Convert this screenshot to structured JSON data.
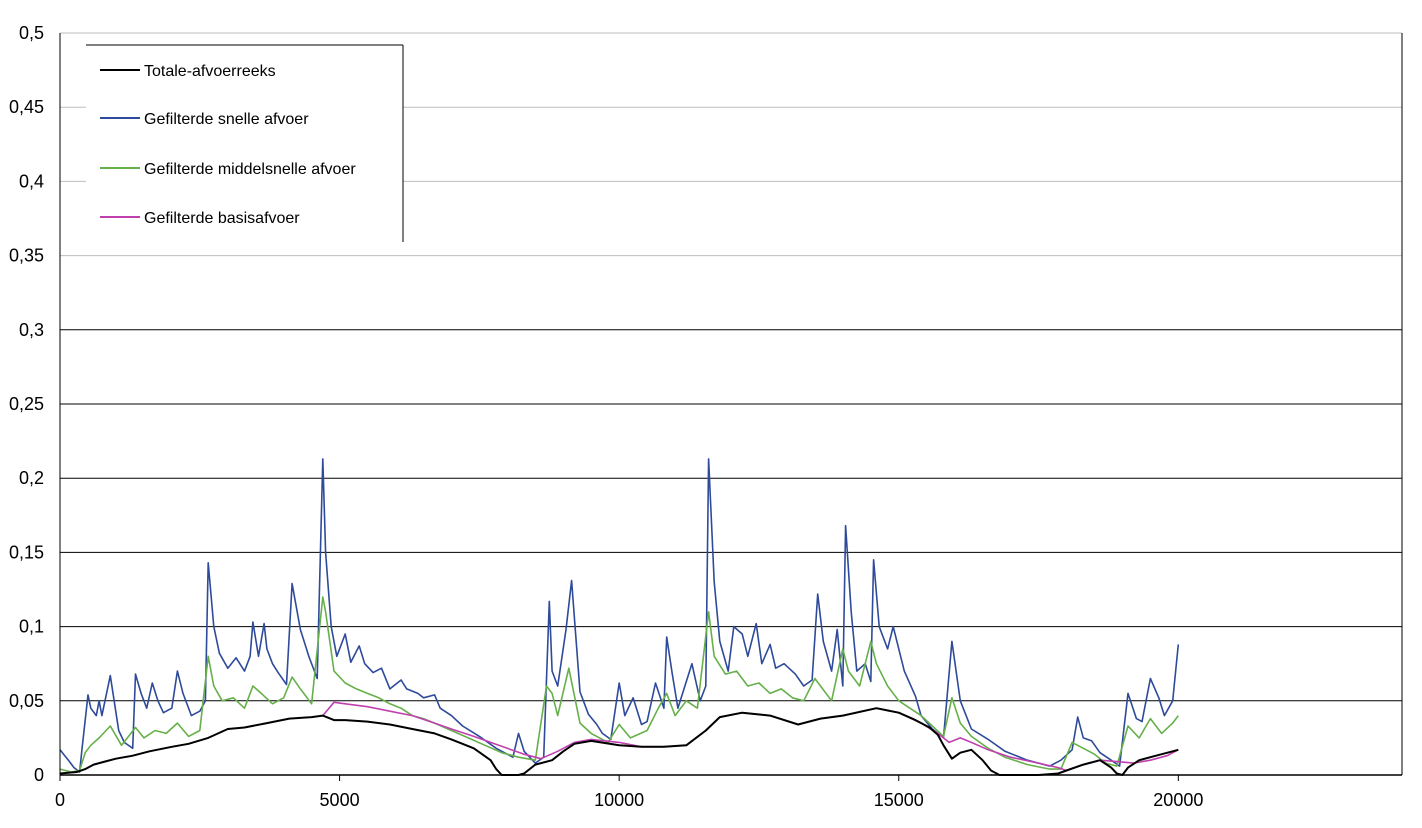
{
  "chart_data": {
    "type": "line",
    "title": "",
    "xlabel": "",
    "ylabel": "",
    "xlim": [
      0,
      24000
    ],
    "ylim": [
      0,
      0.5
    ],
    "x_ticks": [
      0,
      5000,
      10000,
      15000,
      20000
    ],
    "x_tick_labels": [
      "0",
      "5000",
      "10000",
      "15000",
      "20000"
    ],
    "y_ticks": [
      0,
      0.05,
      0.1,
      0.15,
      0.2,
      0.25,
      0.3,
      0.35,
      0.4,
      0.45,
      0.5
    ],
    "y_tick_labels": [
      "0",
      "0,05",
      "0,1",
      "0,15",
      "0,2",
      "0,25",
      "0,3",
      "0,35",
      "0,4",
      "0,45",
      "0,5"
    ],
    "grid": true,
    "legend_position": "top-left",
    "legend": [
      "Totale-afvoerreeks",
      "Gefilterde snelle afvoer",
      "Gefilterde middelsnelle afvoer",
      "Gefilterde basisafvoer"
    ],
    "colors": {
      "total": "#000000",
      "fast": "#2e4a9a",
      "medium": "#66b04a",
      "base": "#c040b0",
      "grid_major": "#000000",
      "grid_minor": "#bdbdbd"
    },
    "series": [
      {
        "name": "Totale-afvoerreeks",
        "x": [
          0,
          300,
          450,
          600,
          800,
          1000,
          1300,
          1600,
          2000,
          2300,
          2650,
          3000,
          3300,
          3700,
          4100,
          4500,
          4700,
          4900,
          5100,
          5500,
          5900,
          6300,
          6700,
          7000,
          7400,
          7700,
          7800,
          7900,
          8100,
          8200,
          8300,
          8500,
          8800,
          9000,
          9200,
          9500,
          10000,
          10400,
          10800,
          11200,
          11550,
          11800,
          12200,
          12700,
          13200,
          13600,
          14000,
          14600,
          15000,
          15300,
          15550,
          15700,
          15800,
          15950,
          16100,
          16300,
          16500,
          16650,
          16800,
          17000,
          17500,
          17850,
          18000,
          18300,
          18600,
          18800,
          18900,
          19000,
          19100,
          19300,
          19600,
          19900,
          20000
        ],
        "y": [
          0.001,
          0.002,
          0.004,
          0.007,
          0.009,
          0.011,
          0.013,
          0.016,
          0.019,
          0.021,
          0.025,
          0.031,
          0.032,
          0.035,
          0.038,
          0.039,
          0.04,
          0.037,
          0.037,
          0.036,
          0.034,
          0.031,
          0.028,
          0.024,
          0.018,
          0.01,
          0.004,
          0.0,
          0.0,
          0.0,
          0.001,
          0.007,
          0.01,
          0.016,
          0.021,
          0.023,
          0.02,
          0.019,
          0.019,
          0.02,
          0.03,
          0.039,
          0.042,
          0.04,
          0.034,
          0.038,
          0.04,
          0.045,
          0.042,
          0.037,
          0.032,
          0.027,
          0.02,
          0.011,
          0.015,
          0.017,
          0.01,
          0.003,
          0.0,
          0.0,
          0.0,
          0.001,
          0.003,
          0.007,
          0.01,
          0.005,
          0.001,
          0.0,
          0.005,
          0.01,
          0.013,
          0.016,
          0.017
        ]
      },
      {
        "name": "Gefilterde snelle afvoer",
        "x": [
          0,
          150,
          250,
          350,
          400,
          500,
          550,
          650,
          700,
          750,
          900,
          1050,
          1150,
          1300,
          1350,
          1450,
          1550,
          1650,
          1750,
          1850,
          2000,
          2100,
          2200,
          2350,
          2500,
          2600,
          2650,
          2750,
          2850,
          3000,
          3150,
          3300,
          3400,
          3450,
          3550,
          3650,
          3700,
          3800,
          3900,
          4050,
          4150,
          4300,
          4450,
          4600,
          4700,
          4750,
          4850,
          4950,
          5100,
          5200,
          5350,
          5450,
          5600,
          5750,
          5900,
          6100,
          6200,
          6400,
          6500,
          6700,
          6800,
          7000,
          7200,
          7500,
          7800,
          8100,
          8200,
          8300,
          8500,
          8650,
          8750,
          8800,
          8900,
          9050,
          9150,
          9300,
          9450,
          9600,
          9700,
          9850,
          10000,
          10100,
          10250,
          10400,
          10500,
          10650,
          10800,
          10850,
          10950,
          11050,
          11300,
          11450,
          11550,
          11600,
          11700,
          11800,
          11950,
          12050,
          12200,
          12300,
          12450,
          12550,
          12700,
          12800,
          12950,
          13150,
          13300,
          13450,
          13550,
          13650,
          13800,
          13900,
          14000,
          14050,
          14150,
          14250,
          14400,
          14500,
          14550,
          14650,
          14800,
          14900,
          15100,
          15300,
          15400,
          15600,
          15800,
          15950,
          16100,
          16300,
          16600,
          16900,
          17300,
          17700,
          17900,
          18100,
          18200,
          18300,
          18450,
          18600,
          18800,
          18950,
          19100,
          19250,
          19350,
          19500,
          19650,
          19750,
          19900,
          20000
        ],
        "y": [
          0.017,
          0.01,
          0.005,
          0.002,
          0.02,
          0.054,
          0.045,
          0.04,
          0.05,
          0.04,
          0.067,
          0.03,
          0.022,
          0.018,
          0.068,
          0.055,
          0.045,
          0.062,
          0.05,
          0.042,
          0.045,
          0.07,
          0.055,
          0.04,
          0.043,
          0.05,
          0.143,
          0.1,
          0.082,
          0.072,
          0.079,
          0.07,
          0.08,
          0.103,
          0.08,
          0.102,
          0.085,
          0.075,
          0.069,
          0.061,
          0.129,
          0.098,
          0.08,
          0.065,
          0.213,
          0.15,
          0.1,
          0.08,
          0.095,
          0.076,
          0.087,
          0.075,
          0.069,
          0.072,
          0.058,
          0.064,
          0.058,
          0.055,
          0.052,
          0.054,
          0.045,
          0.04,
          0.033,
          0.026,
          0.018,
          0.012,
          0.028,
          0.016,
          0.008,
          0.012,
          0.117,
          0.07,
          0.06,
          0.098,
          0.131,
          0.056,
          0.041,
          0.034,
          0.028,
          0.024,
          0.062,
          0.04,
          0.052,
          0.034,
          0.036,
          0.062,
          0.045,
          0.093,
          0.068,
          0.045,
          0.075,
          0.05,
          0.06,
          0.213,
          0.13,
          0.09,
          0.07,
          0.1,
          0.095,
          0.08,
          0.102,
          0.075,
          0.088,
          0.072,
          0.075,
          0.068,
          0.06,
          0.064,
          0.122,
          0.09,
          0.07,
          0.098,
          0.06,
          0.168,
          0.11,
          0.07,
          0.075,
          0.063,
          0.145,
          0.1,
          0.085,
          0.1,
          0.07,
          0.053,
          0.04,
          0.031,
          0.025,
          0.09,
          0.05,
          0.031,
          0.024,
          0.016,
          0.01,
          0.006,
          0.01,
          0.017,
          0.039,
          0.025,
          0.023,
          0.015,
          0.01,
          0.006,
          0.055,
          0.038,
          0.036,
          0.065,
          0.052,
          0.04,
          0.05,
          0.088
        ]
      },
      {
        "name": "Gefilterde middelsnelle afvoer",
        "x": [
          0,
          200,
          350,
          450,
          550,
          700,
          900,
          1100,
          1350,
          1500,
          1700,
          1900,
          2100,
          2300,
          2500,
          2650,
          2750,
          2900,
          3100,
          3300,
          3450,
          3600,
          3800,
          4000,
          4150,
          4300,
          4500,
          4700,
          4750,
          4900,
          5100,
          5300,
          5500,
          5700,
          5900,
          6100,
          6300,
          6500,
          6700,
          7000,
          7300,
          7600,
          7900,
          8200,
          8500,
          8700,
          8800,
          8900,
          9100,
          9300,
          9500,
          9800,
          10000,
          10200,
          10500,
          10700,
          10850,
          11000,
          11200,
          11400,
          11600,
          11700,
          11900,
          12100,
          12300,
          12500,
          12700,
          12900,
          13100,
          13300,
          13500,
          13600,
          13800,
          14000,
          14100,
          14300,
          14500,
          14600,
          14800,
          15000,
          15200,
          15400,
          15600,
          15800,
          15950,
          16100,
          16300,
          16600,
          16900,
          17300,
          17700,
          17900,
          18100,
          18300,
          18500,
          18700,
          18900,
          19100,
          19300,
          19500,
          19700,
          19900,
          20000
        ],
        "y": [
          0.004,
          0.002,
          0.003,
          0.015,
          0.02,
          0.025,
          0.033,
          0.02,
          0.032,
          0.025,
          0.03,
          0.028,
          0.035,
          0.026,
          0.03,
          0.08,
          0.06,
          0.05,
          0.052,
          0.045,
          0.06,
          0.055,
          0.048,
          0.052,
          0.066,
          0.058,
          0.048,
          0.12,
          0.11,
          0.07,
          0.062,
          0.058,
          0.055,
          0.052,
          0.048,
          0.045,
          0.04,
          0.038,
          0.035,
          0.03,
          0.025,
          0.02,
          0.015,
          0.012,
          0.01,
          0.06,
          0.055,
          0.04,
          0.072,
          0.035,
          0.028,
          0.022,
          0.034,
          0.025,
          0.03,
          0.045,
          0.055,
          0.04,
          0.05,
          0.045,
          0.11,
          0.08,
          0.068,
          0.07,
          0.06,
          0.062,
          0.055,
          0.058,
          0.052,
          0.05,
          0.065,
          0.06,
          0.05,
          0.085,
          0.07,
          0.06,
          0.09,
          0.075,
          0.06,
          0.05,
          0.045,
          0.04,
          0.033,
          0.026,
          0.052,
          0.035,
          0.026,
          0.018,
          0.012,
          0.007,
          0.004,
          0.004,
          0.022,
          0.018,
          0.014,
          0.008,
          0.006,
          0.033,
          0.025,
          0.038,
          0.028,
          0.035,
          0.04
        ]
      },
      {
        "name": "Gefilterde basisafvoer",
        "x": [
          4700,
          4900,
          5100,
          5500,
          5900,
          6300,
          6700,
          7000,
          7400,
          7700,
          8000,
          8300,
          8600,
          8900,
          9200,
          9500,
          10000,
          10400,
          10800,
          11200,
          11550,
          11800,
          12200,
          12700,
          13200,
          13600,
          14000,
          14600,
          15000,
          15400,
          15700,
          15900,
          16100,
          16300,
          16600,
          17000,
          17500,
          17850,
          18000,
          18300,
          18600,
          18900,
          19200,
          19500,
          19800,
          20000
        ],
        "y": [
          0.04,
          0.049,
          0.048,
          0.046,
          0.043,
          0.04,
          0.035,
          0.031,
          0.026,
          0.022,
          0.018,
          0.014,
          0.011,
          0.016,
          0.022,
          0.024,
          0.022,
          0.019,
          0.019,
          0.02,
          0.03,
          0.039,
          0.042,
          0.04,
          0.034,
          0.038,
          0.04,
          0.045,
          0.042,
          0.035,
          0.028,
          0.022,
          0.025,
          0.022,
          0.017,
          0.012,
          0.008,
          0.005,
          0.003,
          0.007,
          0.01,
          0.009,
          0.008,
          0.01,
          0.013,
          0.017
        ]
      }
    ]
  }
}
